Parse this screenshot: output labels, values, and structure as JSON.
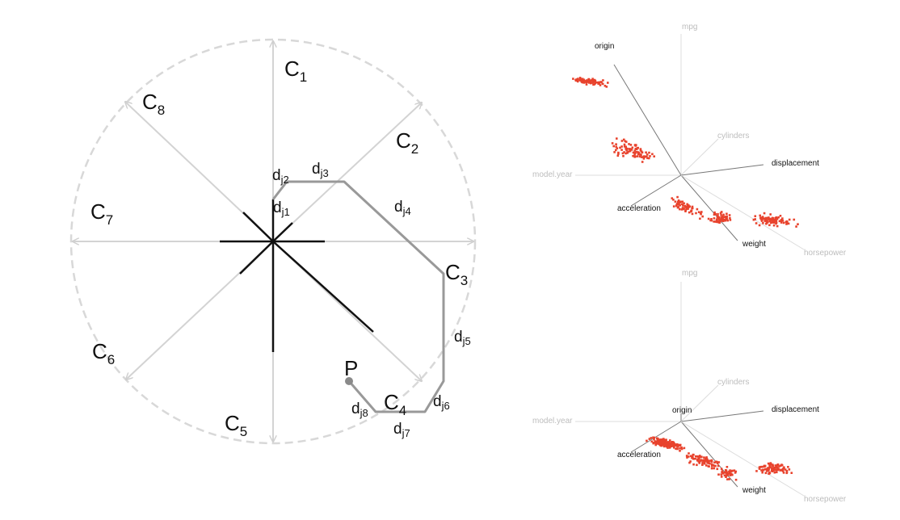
{
  "left_diagram": {
    "anchors": [
      {
        "letter": "C",
        "index": "1"
      },
      {
        "letter": "C",
        "index": "2"
      },
      {
        "letter": "C",
        "index": "3"
      },
      {
        "letter": "C",
        "index": "4"
      },
      {
        "letter": "C",
        "index": "5"
      },
      {
        "letter": "C",
        "index": "6"
      },
      {
        "letter": "C",
        "index": "7"
      },
      {
        "letter": "C",
        "index": "8"
      }
    ],
    "distances": [
      {
        "letter": "d",
        "index": "j1"
      },
      {
        "letter": "d",
        "index": "j2"
      },
      {
        "letter": "d",
        "index": "j3"
      },
      {
        "letter": "d",
        "index": "j4"
      },
      {
        "letter": "d",
        "index": "j5"
      },
      {
        "letter": "d",
        "index": "j6"
      },
      {
        "letter": "d",
        "index": "j7"
      },
      {
        "letter": "d",
        "index": "j8"
      }
    ],
    "point_label": "P",
    "colors": {
      "circle": "#d6d6d6",
      "spokes": "#d3d3d3",
      "path": "#999999",
      "star": "#111111"
    }
  },
  "top_projection": {
    "axes": {
      "mpg": "mpg",
      "origin": "origin",
      "cylinders": "cylinders",
      "displacement": "displacement",
      "model_year": "model.year",
      "acceleration": "acceleration",
      "weight": "weight",
      "horsepower": "horsepower"
    }
  },
  "bottom_projection": {
    "axes": {
      "mpg": "mpg",
      "origin": "origin",
      "cylinders": "cylinders",
      "displacement": "displacement",
      "model_year": "model.year",
      "acceleration": "acceleration",
      "weight": "weight",
      "horsepower": "horsepower"
    }
  },
  "point_color": "#e8432d"
}
